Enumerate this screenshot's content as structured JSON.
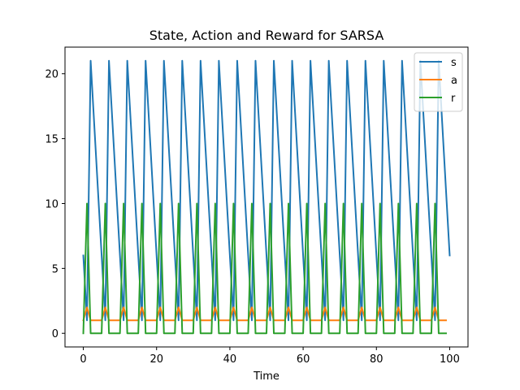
{
  "chart_data": {
    "type": "line",
    "title": "State, Action and Reward for SARSA",
    "xlabel": "Time",
    "ylabel": "",
    "xlim": [
      -5,
      105
    ],
    "ylim": [
      -1.05,
      22.05
    ],
    "xticks": [
      0,
      20,
      40,
      60,
      80,
      100
    ],
    "yticks": [
      0,
      5,
      10,
      15,
      20
    ],
    "grid": false,
    "legend_position": "top-right",
    "series": [
      {
        "name": "s",
        "color": "#1f77b4",
        "x": [
          0,
          1,
          2,
          6,
          7,
          11,
          12,
          16,
          17,
          21,
          22,
          26,
          27,
          31,
          32,
          36,
          37,
          41,
          42,
          46,
          47,
          51,
          52,
          56,
          57,
          61,
          62,
          66,
          67,
          71,
          72,
          76,
          77,
          81,
          82,
          86,
          87,
          91,
          92,
          96,
          97,
          100
        ],
        "values": [
          6,
          1,
          21,
          1,
          21,
          1,
          21,
          1,
          21,
          1,
          21,
          1,
          21,
          1,
          21,
          1,
          21,
          1,
          21,
          1,
          21,
          1,
          21,
          1,
          21,
          1,
          21,
          1,
          21,
          1,
          21,
          1,
          21,
          1,
          21,
          1,
          21,
          1,
          21,
          1,
          21,
          6
        ]
      },
      {
        "name": "a",
        "color": "#ff7f0e",
        "x": [
          0,
          1,
          2,
          5,
          6,
          7,
          10,
          11,
          12,
          15,
          16,
          17,
          20,
          21,
          22,
          25,
          26,
          27,
          30,
          31,
          32,
          35,
          36,
          37,
          40,
          41,
          42,
          45,
          46,
          47,
          50,
          51,
          52,
          55,
          56,
          57,
          60,
          61,
          62,
          65,
          66,
          67,
          70,
          71,
          72,
          75,
          76,
          77,
          80,
          81,
          82,
          85,
          86,
          87,
          90,
          91,
          92,
          95,
          96,
          97,
          99
        ],
        "values": [
          1,
          2,
          1,
          1,
          2,
          1,
          1,
          2,
          1,
          1,
          2,
          1,
          1,
          2,
          1,
          1,
          2,
          1,
          1,
          2,
          1,
          1,
          2,
          1,
          1,
          2,
          1,
          1,
          2,
          1,
          1,
          2,
          1,
          1,
          2,
          1,
          1,
          2,
          1,
          1,
          2,
          1,
          1,
          2,
          1,
          1,
          2,
          1,
          1,
          2,
          1,
          1,
          2,
          1,
          1,
          2,
          1,
          1,
          2,
          1,
          1
        ]
      },
      {
        "name": "r",
        "color": "#2ca02c",
        "x": [
          0,
          1,
          2,
          5,
          6,
          7,
          10,
          11,
          12,
          15,
          16,
          17,
          20,
          21,
          22,
          25,
          26,
          27,
          30,
          31,
          32,
          35,
          36,
          37,
          40,
          41,
          42,
          45,
          46,
          47,
          50,
          51,
          52,
          55,
          56,
          57,
          60,
          61,
          62,
          65,
          66,
          67,
          70,
          71,
          72,
          75,
          76,
          77,
          80,
          81,
          82,
          85,
          86,
          87,
          90,
          91,
          92,
          95,
          96,
          97,
          99
        ],
        "values": [
          0,
          10,
          0,
          0,
          10,
          0,
          0,
          10,
          0,
          0,
          10,
          0,
          0,
          10,
          0,
          0,
          10,
          0,
          0,
          10,
          0,
          0,
          10,
          0,
          0,
          10,
          0,
          0,
          10,
          0,
          0,
          10,
          0,
          0,
          10,
          0,
          0,
          10,
          0,
          0,
          10,
          0,
          0,
          10,
          0,
          0,
          10,
          0,
          0,
          10,
          0,
          0,
          10,
          0,
          0,
          10,
          0,
          0,
          10,
          0,
          0
        ]
      }
    ]
  }
}
